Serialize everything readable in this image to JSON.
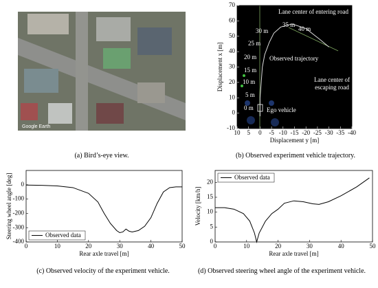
{
  "photo": {
    "watermark": "Google Earth"
  },
  "chart_data": [
    {
      "type": "line",
      "dark": true,
      "xlabel": "Displacement y [m]",
      "ylabel": "Displacement x [m]",
      "xlim": [
        10,
        -40
      ],
      "xticks": [
        10,
        5,
        0,
        -5,
        -10,
        -15,
        -20,
        -25,
        -30,
        -35,
        -40
      ],
      "ylim": [
        -10,
        70
      ],
      "yticks": [
        70,
        60,
        50,
        40,
        30,
        20,
        10,
        0,
        -10
      ],
      "series": [
        {
          "name": "Observed trajectory",
          "color": "#dddddd",
          "x": [
            0,
            0,
            -0.5,
            -1,
            -2,
            -4,
            -6,
            -9,
            -14,
            -20,
            -26,
            -30
          ],
          "values": [
            -2,
            10,
            20,
            30,
            38,
            46,
            52,
            56,
            58,
            55,
            48,
            43
          ]
        }
      ],
      "annotations": [
        "Lane center of entering road",
        "35 m",
        "40 m",
        "30 m",
        "25 m",
        "20 m",
        "15 m",
        "10 m",
        "5 m",
        "0 m",
        "Observed trajectory",
        "Lane center of escaping road",
        "Ego vehicle"
      ]
    },
    {
      "type": "line",
      "xlabel": "Rear axle travel [m]",
      "ylabel": "Steering wheel angle [deg]",
      "xlim": [
        0,
        50
      ],
      "xticks": [
        0,
        10,
        20,
        30,
        40,
        50
      ],
      "ylim": [
        -400,
        100
      ],
      "yticks": [
        0,
        -100,
        -200,
        -300,
        -400
      ],
      "legend": "lower left",
      "series": [
        {
          "name": "Observed data",
          "color": "#000000",
          "x": [
            0,
            5,
            10,
            15,
            20,
            23,
            25,
            27,
            29,
            30,
            31,
            32,
            33,
            34,
            36,
            38,
            40,
            42,
            44,
            46,
            48,
            50
          ],
          "values": [
            -2,
            -4,
            -8,
            -20,
            -60,
            -120,
            -200,
            -270,
            -320,
            -335,
            -330,
            -310,
            -325,
            -330,
            -320,
            -290,
            -230,
            -130,
            -50,
            -20,
            -15,
            -15
          ]
        }
      ]
    },
    {
      "type": "line",
      "xlabel": "Rear axle travel [m]",
      "ylabel": "Velocity [km/h]",
      "xlim": [
        0,
        50
      ],
      "xticks": [
        0,
        10,
        20,
        30,
        40,
        50
      ],
      "ylim": [
        0,
        24
      ],
      "yticks": [
        0,
        5,
        10,
        15,
        20
      ],
      "legend": "upper left",
      "series": [
        {
          "name": "Observed data",
          "color": "#000000",
          "x": [
            0,
            3,
            6,
            9,
            11,
            12.5,
            13.2,
            14,
            16,
            18,
            20,
            22,
            25,
            28,
            31,
            33,
            36,
            40,
            45,
            49
          ],
          "values": [
            11.5,
            11.5,
            11,
            9.5,
            7,
            3,
            0,
            3,
            7,
            9.5,
            11,
            13,
            13.8,
            13.5,
            12.8,
            12.6,
            13.5,
            15.5,
            18.5,
            21.5
          ]
        }
      ]
    }
  ],
  "captions": [
    "(a) Bird’s-eye view.",
    "(b) Observed experiment vehicle trajectory.",
    "(c) Observed velocity of the experiment vehicle.",
    "(d) Observed steering wheel angle of the experiment vehicle."
  ]
}
